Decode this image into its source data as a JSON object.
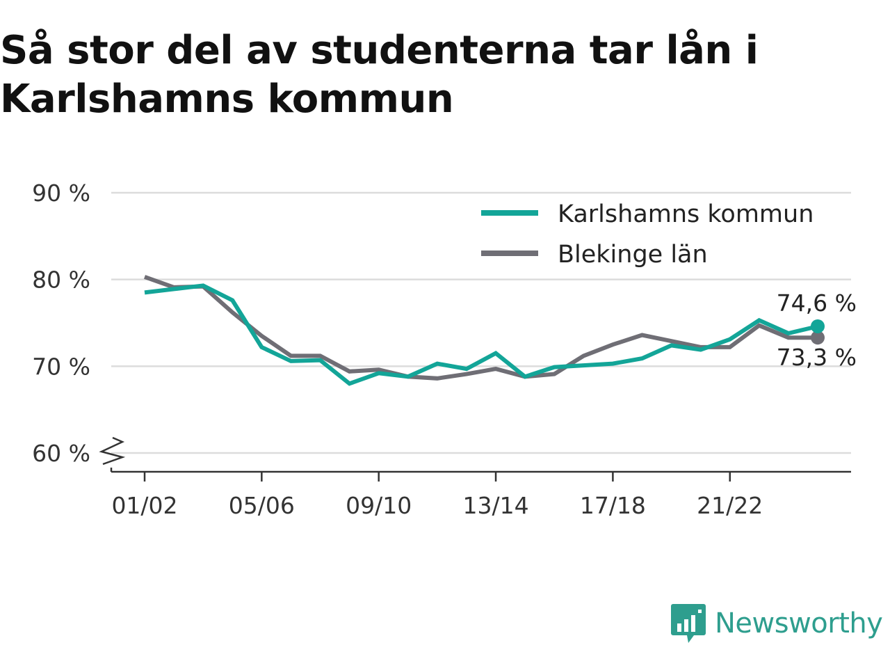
{
  "header": {
    "title": "Så stor del av studenterna tar lån i Karlshamns kommun"
  },
  "brand": {
    "name": "Newsworthy",
    "icon": "bar-chart-speech-bubble-icon",
    "color": "#2e9e8e"
  },
  "chart_data": {
    "type": "line",
    "x": [
      "01/02",
      "02/03",
      "03/04",
      "04/05",
      "05/06",
      "06/07",
      "07/08",
      "08/09",
      "09/10",
      "10/11",
      "11/12",
      "12/13",
      "13/14",
      "14/15",
      "15/16",
      "16/17",
      "17/18",
      "18/19",
      "19/20",
      "20/21",
      "21/22",
      "22/23",
      "23/24",
      "24/25"
    ],
    "x_tick_labels": [
      "01/02",
      "05/06",
      "09/10",
      "13/14",
      "17/18",
      "21/22"
    ],
    "y_ticks": [
      60,
      70,
      80,
      90
    ],
    "y_tick_labels": [
      "60 %",
      "70 %",
      "80 %",
      "90 %"
    ],
    "ylim": [
      60,
      90
    ],
    "y_axis_break": true,
    "grid": true,
    "legend_position": "top-right",
    "series": [
      {
        "name": "Karlshamns kommun",
        "color": "#13a598",
        "values": [
          78.5,
          78.9,
          79.3,
          77.6,
          72.2,
          70.6,
          70.7,
          68.0,
          69.2,
          68.8,
          70.3,
          69.7,
          71.5,
          68.8,
          69.9,
          70.1,
          70.3,
          70.9,
          72.4,
          71.9,
          73.1,
          75.3,
          73.8,
          74.6
        ],
        "end_label": "74,6 %"
      },
      {
        "name": "Blekinge län",
        "color": "#6f6e75",
        "values": [
          80.3,
          79.1,
          79.2,
          76.2,
          73.5,
          71.2,
          71.2,
          69.4,
          69.6,
          68.8,
          68.6,
          69.1,
          69.7,
          68.8,
          69.1,
          71.2,
          72.5,
          73.6,
          72.9,
          72.2,
          72.2,
          74.7,
          73.3,
          73.3
        ],
        "end_label": "73,3 %"
      }
    ]
  }
}
